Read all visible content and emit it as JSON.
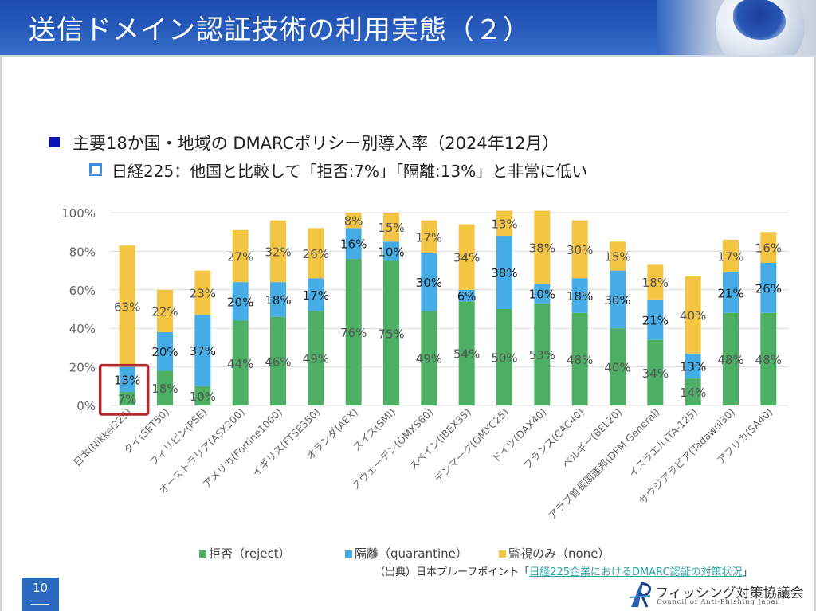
{
  "header": {
    "title": "送信ドメイン認証技術の利用実態（２）"
  },
  "bullets": {
    "main": "主要18か国・地域の DMARCポリシー別導入率（2024年12月）",
    "sub": "日経225：他国と比較して「拒否:7%」「隔離:13%」と非常に低い"
  },
  "colors": {
    "reject": "#4caf63",
    "quarantine": "#45ace6",
    "none": "#f4c542",
    "highlight_box": "#b22a2a",
    "header_blue": "#2557b8"
  },
  "chart_data": {
    "type": "bar",
    "stacked": true,
    "title": "",
    "xlabel": "",
    "ylabel": "",
    "ylim": [
      0,
      100
    ],
    "yticks": [
      "0%",
      "20%",
      "40%",
      "60%",
      "80%",
      "100%"
    ],
    "grid": true,
    "legend_position": "bottom",
    "categories": [
      "日本(Nikkei225)",
      "タイ(SET50)",
      "フィリピン(PSE)",
      "オーストラリア(ASX200)",
      "アメリカ(Fortine1000)",
      "イギリス(FTSE350)",
      "オランダ(AEX)",
      "スイス(SMI)",
      "スウェーデン(OMXS60)",
      "スペイン(IBEX35)",
      "デンマーク(OMXC25)",
      "ドイツ(DAX40)",
      "フランス(CAC40)",
      "ベルギー(BEL20)",
      "アラブ首長国連邦(DFM General)",
      "イスラエル(TA-125)",
      "サウジアラビア(Tadawul30)",
      "アフリカ(SA40)"
    ],
    "series": [
      {
        "name": "拒否（reject）",
        "key": "reject",
        "values": [
          7,
          18,
          10,
          44,
          46,
          49,
          76,
          75,
          49,
          54,
          50,
          53,
          48,
          40,
          34,
          14,
          48,
          48
        ]
      },
      {
        "name": "隔離（quarantine）",
        "key": "quarantine",
        "values": [
          13,
          20,
          37,
          20,
          18,
          17,
          16,
          10,
          30,
          6,
          38,
          10,
          18,
          30,
          21,
          13,
          21,
          26
        ]
      },
      {
        "name": "監視のみ（none）",
        "key": "none",
        "values": [
          63,
          22,
          23,
          27,
          32,
          26,
          8,
          15,
          17,
          34,
          13,
          38,
          30,
          15,
          18,
          40,
          17,
          16
        ]
      }
    ],
    "highlighted_category": "日本(Nikkei225)",
    "highlighted_series": [
      "reject",
      "quarantine"
    ]
  },
  "legend": {
    "reject": "拒否（reject）",
    "quarantine": "隔離（quarantine）",
    "none": "監視のみ（none）"
  },
  "source": {
    "prefix": "（出典）日本プルーフポイント「",
    "link": "日経225企業におけるDMARC認証の対策状況",
    "suffix": "」"
  },
  "footer": {
    "page_number": "10",
    "org_name": "フィッシング対策協議会",
    "org_name_en": "Council of Anti-Phishing Japan"
  }
}
